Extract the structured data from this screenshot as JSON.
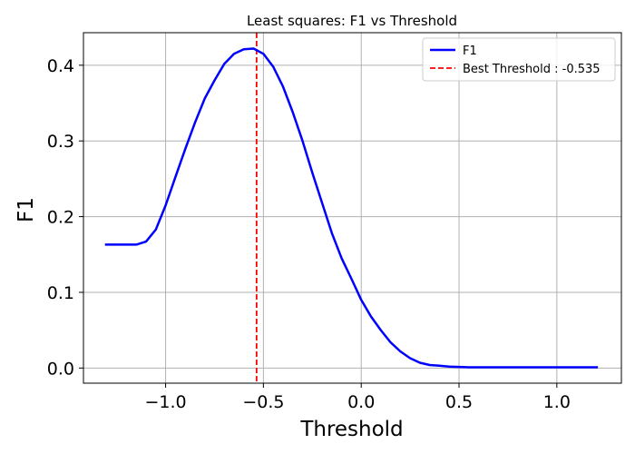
{
  "chart_data": {
    "type": "line",
    "title": "Least squares: F1 vs Threshold",
    "xlabel": "Threshold",
    "ylabel": "F1",
    "xlim": [
      -1.42,
      1.33
    ],
    "ylim": [
      -0.02,
      0.443
    ],
    "grid": true,
    "legend_position": "top-right",
    "x_ticks": [
      -1.0,
      -0.5,
      0.0,
      0.5,
      1.0
    ],
    "x_tick_labels": [
      "−1.0",
      "−0.5",
      "0.0",
      "0.5",
      "1.0"
    ],
    "y_ticks": [
      0.0,
      0.1,
      0.2,
      0.3,
      0.4
    ],
    "y_tick_labels": [
      "0.0",
      "0.1",
      "0.2",
      "0.3",
      "0.4"
    ],
    "series": [
      {
        "name": "F1",
        "color": "#0000ff",
        "style": "solid",
        "x": [
          -1.31,
          -1.25,
          -1.2,
          -1.15,
          -1.1,
          -1.05,
          -1.0,
          -0.95,
          -0.9,
          -0.85,
          -0.8,
          -0.75,
          -0.7,
          -0.65,
          -0.6,
          -0.55,
          -0.5,
          -0.45,
          -0.4,
          -0.35,
          -0.3,
          -0.25,
          -0.2,
          -0.15,
          -0.1,
          -0.05,
          0.0,
          0.05,
          0.1,
          0.15,
          0.2,
          0.25,
          0.3,
          0.35,
          0.4,
          0.45,
          0.5,
          0.55,
          0.6,
          0.7,
          0.8,
          0.9,
          1.0,
          1.1,
          1.21
        ],
        "y": [
          0.163,
          0.163,
          0.163,
          0.163,
          0.167,
          0.183,
          0.215,
          0.252,
          0.289,
          0.324,
          0.356,
          0.38,
          0.402,
          0.415,
          0.421,
          0.422,
          0.415,
          0.398,
          0.372,
          0.338,
          0.3,
          0.258,
          0.218,
          0.178,
          0.145,
          0.118,
          0.09,
          0.068,
          0.05,
          0.034,
          0.022,
          0.013,
          0.007,
          0.004,
          0.003,
          0.002,
          0.0015,
          0.001,
          0.001,
          0.001,
          0.001,
          0.001,
          0.001,
          0.001,
          0.001
        ]
      }
    ],
    "reference_lines": [
      {
        "name": "Best Threshold : -0.535",
        "orientation": "vertical",
        "x": -0.535,
        "color": "#ff0000",
        "style": "dashed"
      }
    ]
  }
}
